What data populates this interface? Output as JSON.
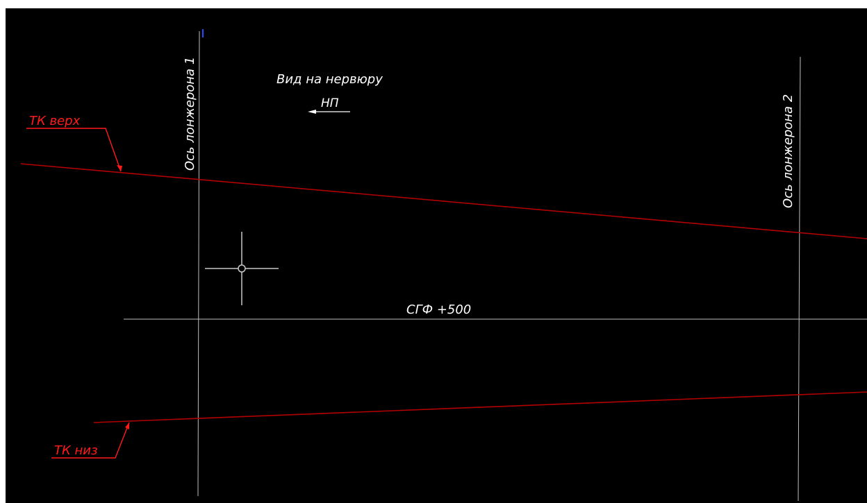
{
  "drawing": {
    "axis_labels": {
      "spar_1": "Ось лонжерона 1",
      "spar_2": "Ось лонжерона 2"
    },
    "view_title": "Вид на нервюру",
    "view_direction": "НП",
    "level_line": "СГФ +500",
    "upper_contour": "ТК верх",
    "lower_contour": "ТК низ"
  },
  "colors": {
    "background": "#000000",
    "axis_lines": "#bfbfbf",
    "text": "#ffffff",
    "contour_lines": "#b30000",
    "contour_labels": "#ff1a1a",
    "cursor": "#c8c8c8",
    "axis_marker": "#1f4fff"
  },
  "icons": {
    "cursor": "crosshair-cursor-icon",
    "direction": "arrow-left-icon"
  }
}
